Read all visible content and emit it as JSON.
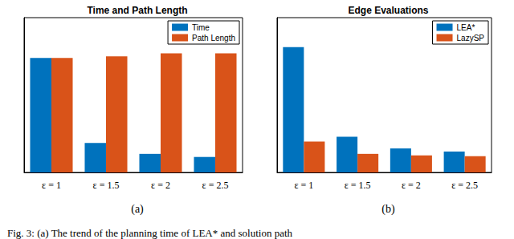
{
  "chart_data": [
    {
      "type": "bar",
      "title": "Time and Path Length",
      "caption": "(a)",
      "categories": [
        "ε = 1",
        "ε = 1.5",
        "ε = 2",
        "ε = 2.5"
      ],
      "series": [
        {
          "name": "Time",
          "color": "#0072BD",
          "values": [
            0.74,
            0.19,
            0.12,
            0.1
          ]
        },
        {
          "name": "Path Length",
          "color": "#D95319",
          "values": [
            0.74,
            0.75,
            0.77,
            0.77
          ]
        }
      ],
      "ylim": [
        0,
        1
      ],
      "tick_labels": "x",
      "grid": false,
      "legend": "upper right"
    },
    {
      "type": "bar",
      "title": "Edge Evaluations",
      "caption": "(b)",
      "categories": [
        "ε = 1",
        "ε = 1.5",
        "ε = 2",
        "ε = 2.5"
      ],
      "series": [
        {
          "name": "LEA*",
          "color": "#0072BD",
          "values": [
            0.81,
            0.23,
            0.155,
            0.135
          ]
        },
        {
          "name": "LazySP",
          "color": "#D95319",
          "values": [
            0.2,
            0.12,
            0.11,
            0.105
          ]
        }
      ],
      "ylim": [
        0,
        1
      ],
      "tick_labels": "x",
      "grid": false,
      "legend": "upper right"
    }
  ],
  "caption": "Fig. 3: (a) The trend of the planning time of LEA* and solution path"
}
